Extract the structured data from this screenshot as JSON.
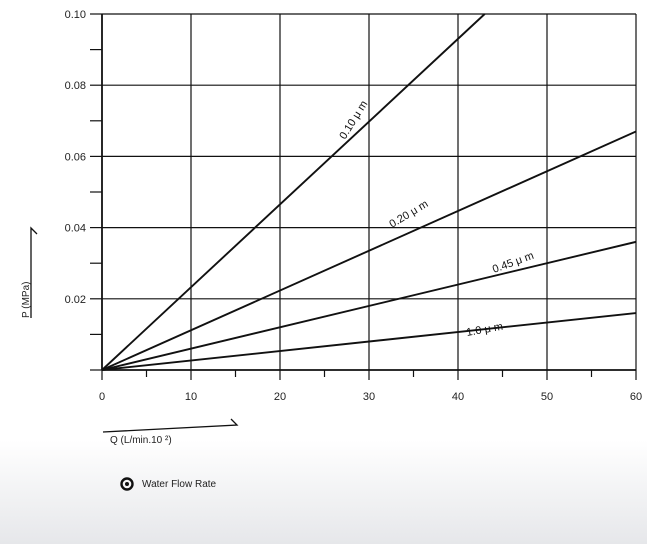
{
  "chart_data": {
    "type": "line",
    "title": "",
    "xlabel": "Q (L/min.10 ²)",
    "ylabel": "P (MPa)",
    "xlim": [
      0,
      60
    ],
    "ylim": [
      0,
      0.1
    ],
    "x_ticks": [
      "0",
      "10",
      "20",
      "30",
      "40",
      "50",
      "60"
    ],
    "y_ticks": [
      "0.02",
      "0.04",
      "0.06",
      "0.08",
      "0.10"
    ],
    "grid": true,
    "series": [
      {
        "name": "0.10 μ m",
        "x": [
          0,
          43
        ],
        "y": [
          0,
          0.1
        ]
      },
      {
        "name": "0.20 μ m",
        "x": [
          0,
          60
        ],
        "y": [
          0,
          0.067
        ]
      },
      {
        "name": "0.45 μ m",
        "x": [
          0,
          60
        ],
        "y": [
          0,
          0.036
        ]
      },
      {
        "name": "1.0 μ m",
        "x": [
          0,
          60
        ],
        "y": [
          0,
          0.016
        ]
      }
    ]
  },
  "legend": {
    "label": "Water Flow Rate",
    "icon": "water-drop-icon"
  }
}
